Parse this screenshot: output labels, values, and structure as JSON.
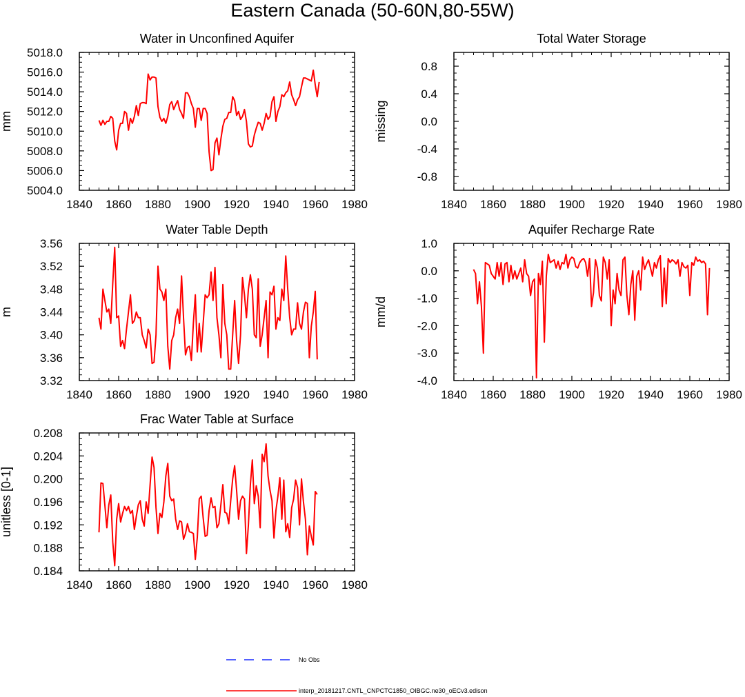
{
  "page": {
    "title": "Eastern Canada (50-60N,80-55W)"
  },
  "series_style": {
    "model_color": "#ff0000",
    "obs_color": "#1a2bff"
  },
  "legend": {
    "obs_label": "No Obs",
    "model_label": "interp_20181217.CNTL_CNPCTC1850_OIBGC.ne30_oECv3.edison"
  },
  "chart_data": [
    {
      "type": "line",
      "title": "Water in Unconfined Aquifer",
      "ylabel": "mm",
      "xlim": [
        1840,
        1980
      ],
      "ylim": [
        5004,
        5018
      ],
      "xticks": [
        1840,
        1860,
        1880,
        1900,
        1920,
        1940,
        1960,
        1980
      ],
      "xtick_labels": [
        "1840",
        "1860",
        "1880",
        "1900",
        "1920",
        "1940",
        "1960",
        "1980"
      ],
      "yticks": [
        5004,
        5006,
        5008,
        5010,
        5012,
        5014,
        5016,
        5018
      ],
      "ytick_labels": [
        "5004.0",
        "5006.0",
        "5008.0",
        "5010.0",
        "5012.0",
        "5014.0",
        "5016.0",
        "5018.0"
      ],
      "x_start": 1850,
      "values": [
        5011.1,
        5010.6,
        5011.1,
        5010.7,
        5011.0,
        5011.0,
        5011.5,
        5011.3,
        5009.0,
        5008.1,
        5010.1,
        5010.8,
        5010.8,
        5012.0,
        5011.8,
        5010.1,
        5011.3,
        5010.8,
        5011.5,
        5012.6,
        5011.6,
        5012.8,
        5012.9,
        5012.9,
        5012.8,
        5015.8,
        5015.2,
        5015.5,
        5015.5,
        5015.4,
        5012.5,
        5011.4,
        5011.0,
        5011.3,
        5010.8,
        5011.5,
        5012.7,
        5013.0,
        5012.2,
        5012.7,
        5013.1,
        5012.2,
        5011.8,
        5011.3,
        5013.9,
        5013.9,
        5013.5,
        5012.8,
        5012.3,
        5010.4,
        5012.3,
        5012.3,
        5011.1,
        5012.3,
        5012.3,
        5011.8,
        5007.9,
        5006.0,
        5006.1,
        5008.8,
        5009.3,
        5007.6,
        5009.2,
        5010.5,
        5011.2,
        5011.3,
        5011.9,
        5011.9,
        5013.5,
        5013.1,
        5011.6,
        5012.0,
        5011.2,
        5011.5,
        5012.2,
        5011.0,
        5008.7,
        5008.4,
        5008.5,
        5009.6,
        5010.3,
        5010.9,
        5010.8,
        5010.1,
        5010.8,
        5011.8,
        5011.2,
        5011.5,
        5013.0,
        5013.5,
        5011.0,
        5012.0,
        5012.5,
        5013.7,
        5013.5,
        5013.9,
        5014.1,
        5015.0,
        5013.7,
        5013.2,
        5012.6,
        5013.2,
        5013.5,
        5014.5,
        5015.4,
        5015.4,
        5015.3,
        5015.2,
        5015.1,
        5016.2,
        5014.7,
        5013.5,
        5015.0
      ]
    },
    {
      "type": "line",
      "title": "Total Water Storage",
      "ylabel": "missing",
      "xlim": [
        1840,
        1980
      ],
      "ylim": [
        -1,
        1
      ],
      "xticks": [
        1840,
        1860,
        1880,
        1900,
        1920,
        1940,
        1960,
        1980
      ],
      "xtick_labels": [
        "1840",
        "1860",
        "1880",
        "1900",
        "1920",
        "1940",
        "1960",
        "1980"
      ],
      "yticks": [
        -0.8,
        -0.4,
        0.0,
        0.4,
        0.8
      ],
      "ytick_labels": [
        "-0.8",
        "-0.4",
        "0.0",
        "0.4",
        "0.8"
      ],
      "x_start": 1850,
      "values": []
    },
    {
      "type": "line",
      "title": "Water Table Depth",
      "ylabel": "m",
      "xlim": [
        1840,
        1980
      ],
      "ylim": [
        3.32,
        3.56
      ],
      "xticks": [
        1840,
        1860,
        1880,
        1900,
        1920,
        1940,
        1960,
        1980
      ],
      "xtick_labels": [
        "1840",
        "1860",
        "1880",
        "1900",
        "1920",
        "1940",
        "1960",
        "1980"
      ],
      "yticks": [
        3.32,
        3.36,
        3.4,
        3.44,
        3.48,
        3.52,
        3.56
      ],
      "ytick_labels": [
        "3.32",
        "3.36",
        "3.40",
        "3.44",
        "3.48",
        "3.52",
        "3.56"
      ],
      "x_start": 1850,
      "values": [
        3.43,
        3.41,
        3.48,
        3.46,
        3.44,
        3.445,
        3.42,
        3.49,
        3.553,
        3.43,
        3.433,
        3.38,
        3.39,
        3.376,
        3.41,
        3.44,
        3.47,
        3.42,
        3.425,
        3.44,
        3.43,
        3.43,
        3.4,
        3.39,
        3.377,
        3.41,
        3.4,
        3.35,
        3.352,
        3.4,
        3.52,
        3.48,
        3.475,
        3.46,
        3.48,
        3.38,
        3.34,
        3.39,
        3.4,
        3.43,
        3.445,
        3.42,
        3.503,
        3.43,
        3.365,
        3.378,
        3.38,
        3.355,
        3.42,
        3.47,
        3.37,
        3.42,
        3.37,
        3.42,
        3.47,
        3.465,
        3.47,
        3.51,
        3.46,
        3.518,
        3.43,
        3.4,
        3.36,
        3.488,
        3.42,
        3.4,
        3.34,
        3.34,
        3.4,
        3.46,
        3.39,
        3.35,
        3.4,
        3.5,
        3.47,
        3.43,
        3.48,
        3.505,
        3.48,
        3.4,
        3.395,
        3.498,
        3.38,
        3.4,
        3.43,
        3.46,
        3.36,
        3.475,
        3.47,
        3.485,
        3.41,
        3.43,
        3.425,
        3.48,
        3.46,
        3.538,
        3.48,
        3.43,
        3.4,
        3.41,
        3.41,
        3.456,
        3.42,
        3.41,
        3.44,
        3.457,
        3.455,
        3.36,
        3.415,
        3.44,
        3.476,
        3.357
      ]
    },
    {
      "type": "line",
      "title": "Aquifer Recharge Rate",
      "ylabel": "mm/d",
      "xlim": [
        1840,
        1980
      ],
      "ylim": [
        -4.0,
        1.0
      ],
      "xticks": [
        1840,
        1860,
        1880,
        1900,
        1920,
        1940,
        1960,
        1980
      ],
      "xtick_labels": [
        "1840",
        "1860",
        "1880",
        "1900",
        "1920",
        "1940",
        "1960",
        "1980"
      ],
      "yticks": [
        -4.0,
        -3.0,
        -2.0,
        -1.0,
        0.0,
        1.0
      ],
      "ytick_labels": [
        "-4.0",
        "-3.0",
        "-2.0",
        "-1.0",
        "0.0",
        "1.0"
      ],
      "x_start": 1850,
      "values": [
        0.05,
        -0.1,
        -1.2,
        -0.4,
        -1.3,
        -3.0,
        0.3,
        0.25,
        0.2,
        -0.1,
        -0.2,
        -0.3,
        0.3,
        -0.2,
        0.3,
        -0.5,
        0.25,
        0.3,
        -0.4,
        0.2,
        -0.3,
        0.0,
        -0.3,
        -0.1,
        0.1,
        -0.4,
        0.4,
        -0.1,
        -0.2,
        -0.9,
        -0.4,
        -0.3,
        -3.9,
        -0.1,
        -0.5,
        0.35,
        -2.6,
        -0.2,
        0.6,
        0.3,
        0.35,
        0.4,
        0.1,
        0.35,
        0.05,
        0.3,
        0.25,
        0.6,
        0.1,
        0.4,
        0.5,
        0.45,
        0.15,
        0.1,
        0.3,
        0.4,
        0.45,
        0.3,
        -0.2,
        0.45,
        -1.3,
        -0.8,
        0.4,
        0.1,
        -0.9,
        -1.1,
        0.5,
        0.3,
        -0.3,
        0.4,
        -2.0,
        -0.7,
        -1.2,
        -0.1,
        -0.7,
        -0.9,
        0.4,
        0.5,
        -0.9,
        -1.6,
        -0.5,
        0.0,
        -1.8,
        -0.2,
        0.0,
        -0.7,
        0.5,
        0.05,
        0.25,
        0.4,
        0.1,
        -0.2,
        0.3,
        0.1,
        0.4,
        0.55,
        -1.3,
        0.1,
        -1.2,
        0.45,
        0.3,
        0.4,
        0.35,
        0.25,
        0.4,
        -0.2,
        0.3,
        0.15,
        0.1,
        0.2,
        -0.9,
        0.3,
        0.2,
        0.5,
        0.35,
        0.4,
        0.3,
        0.35,
        0.25,
        -1.6,
        0.1
      ]
    },
    {
      "type": "line",
      "title": "Frac Water Table at Surface",
      "ylabel": "unitless [0-1]",
      "xlim": [
        1840,
        1980
      ],
      "ylim": [
        0.184,
        0.208
      ],
      "xticks": [
        1840,
        1860,
        1880,
        1900,
        1920,
        1940,
        1960,
        1980
      ],
      "xtick_labels": [
        "1840",
        "1860",
        "1880",
        "1900",
        "1920",
        "1940",
        "1960",
        "1980"
      ],
      "yticks": [
        0.184,
        0.188,
        0.192,
        0.196,
        0.2,
        0.204,
        0.208
      ],
      "ytick_labels": [
        "0.184",
        "0.188",
        "0.192",
        "0.196",
        "0.200",
        "0.204",
        "0.208"
      ],
      "x_start": 1850,
      "values": [
        0.1907,
        0.1993,
        0.1992,
        0.1954,
        0.1915,
        0.1955,
        0.1972,
        0.189,
        0.1849,
        0.193,
        0.1957,
        0.1925,
        0.194,
        0.1952,
        0.1945,
        0.1952,
        0.194,
        0.1945,
        0.1912,
        0.1935,
        0.1955,
        0.1962,
        0.193,
        0.1918,
        0.196,
        0.194,
        0.199,
        0.2038,
        0.202,
        0.195,
        0.1905,
        0.194,
        0.1933,
        0.196,
        0.2005,
        0.2027,
        0.197,
        0.1962,
        0.1965,
        0.193,
        0.1912,
        0.1927,
        0.1925,
        0.1895,
        0.1905,
        0.1922,
        0.1908,
        0.1907,
        0.1905,
        0.186,
        0.1898,
        0.1965,
        0.197,
        0.1932,
        0.19,
        0.1902,
        0.1945,
        0.1967,
        0.195,
        0.1952,
        0.1915,
        0.1922,
        0.1955,
        0.199,
        0.1942,
        0.194,
        0.1922,
        0.1962,
        0.2,
        0.2023,
        0.198,
        0.193,
        0.1962,
        0.197,
        0.1965,
        0.187,
        0.192,
        0.199,
        0.2033,
        0.1957,
        0.1988,
        0.197,
        0.1915,
        0.2043,
        0.203,
        0.2061,
        0.2005,
        0.198,
        0.1962,
        0.1897,
        0.1945,
        0.197,
        0.2002,
        0.193,
        0.1998,
        0.1908,
        0.1922,
        0.1898,
        0.195,
        0.1965,
        0.1998,
        0.1985,
        0.192,
        0.2,
        0.196,
        0.193,
        0.1868,
        0.1918,
        0.19,
        0.1885,
        0.1978,
        0.1973
      ]
    }
  ]
}
